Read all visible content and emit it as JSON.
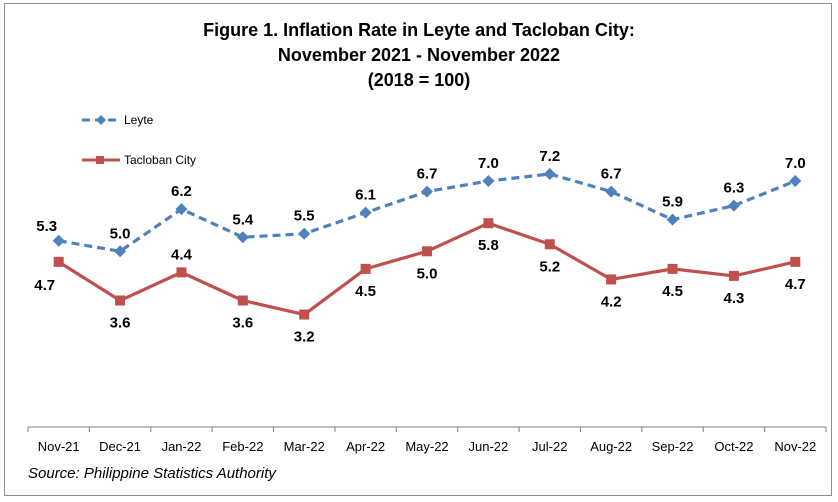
{
  "title": {
    "line1": "Figure 1. Inflation Rate in Leyte and Tacloban City:",
    "line2": "November 2021 - November 2022",
    "line3": "(2018 = 100)"
  },
  "source": "Source: Philippine Statistics Authority",
  "colors": {
    "leyte": "#4f81bd",
    "tacloban": "#c0504d",
    "axis": "#7f7f7f"
  },
  "chart_data": {
    "type": "line",
    "categories": [
      "Nov-21",
      "Dec-21",
      "Jan-22",
      "Feb-22",
      "Mar-22",
      "Apr-22",
      "May-22",
      "Jun-22",
      "Jul-22",
      "Aug-22",
      "Sep-22",
      "Oct-22",
      "Nov-22"
    ],
    "series": [
      {
        "name": "Leyte",
        "style": "dashed",
        "marker": "diamond",
        "values": [
          5.3,
          5.0,
          6.2,
          5.4,
          5.5,
          6.1,
          6.7,
          7.0,
          7.2,
          6.7,
          5.9,
          6.3,
          7.0
        ]
      },
      {
        "name": "Tacloban City",
        "style": "solid",
        "marker": "square",
        "values": [
          4.7,
          3.6,
          4.4,
          3.6,
          3.2,
          4.5,
          5.0,
          5.8,
          5.2,
          4.2,
          4.5,
          4.3,
          4.7
        ]
      }
    ],
    "ylim": [
      0,
      8
    ],
    "grid": false,
    "legend": "top-left"
  }
}
